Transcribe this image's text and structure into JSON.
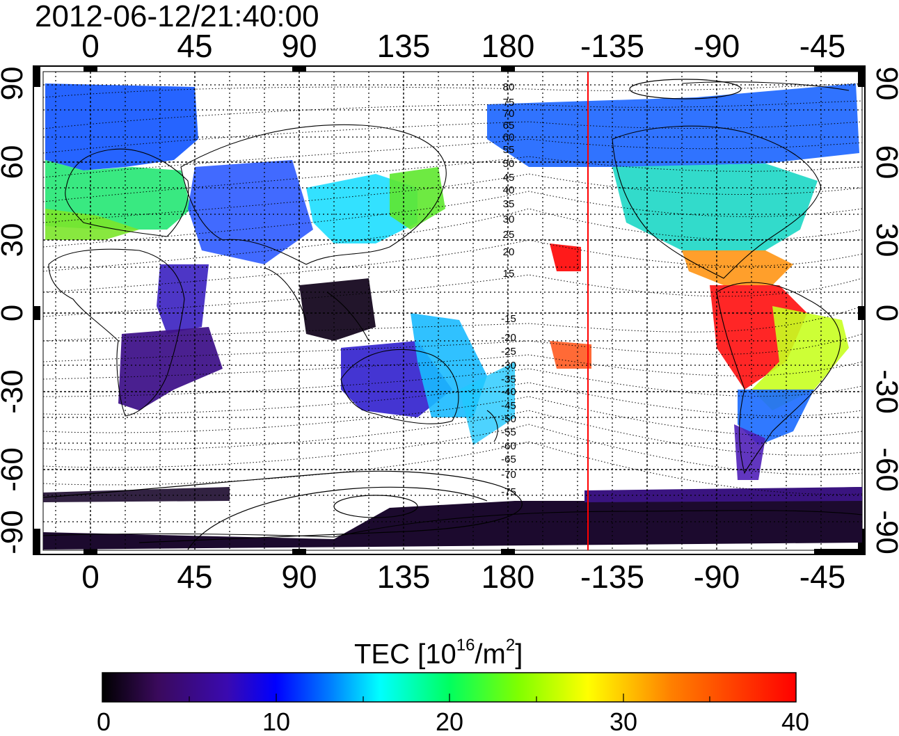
{
  "title": "2012-06-12/21:40:00",
  "map": {
    "top_lon_labels": [
      "0",
      "45",
      "90",
      "135",
      "180",
      "-135",
      "-90",
      "-45"
    ],
    "bottom_lon_labels": [
      "0",
      "45",
      "90",
      "135",
      "180",
      "-135",
      "-90",
      "-45"
    ],
    "left_lat_labels": [
      "90",
      "60",
      "30",
      "0",
      "-30",
      "-60",
      "-90"
    ],
    "right_lat_labels": [
      "90",
      "60",
      "30",
      "0",
      "-30",
      "-60",
      "-90"
    ],
    "contour_labels": [
      "80",
      "75",
      "70",
      "65",
      "60",
      "55",
      "50",
      "45",
      "40",
      "35",
      "30",
      "25",
      "20",
      "15",
      "-15",
      "-20",
      "-25",
      "-30",
      "-35",
      "-40",
      "-45",
      "-50",
      "-55",
      "-60",
      "-65",
      "-70",
      "-75"
    ],
    "terminator_longitude": -150,
    "terminator_color": "#ff0000"
  },
  "colorbar": {
    "title_main": "TEC  [10",
    "title_sup1": "16",
    "title_mid": "/m",
    "title_sup2": "2",
    "title_end": "]",
    "tick_labels": [
      "0",
      "10",
      "20",
      "30",
      "40"
    ],
    "min": 0,
    "max": 40,
    "colors": [
      "#000000",
      "#3a0a5c",
      "#3a0ab0",
      "#0000ff",
      "#0080ff",
      "#00ffff",
      "#00ff60",
      "#80ff00",
      "#ffff00",
      "#ff8000",
      "#ff0000"
    ]
  }
}
